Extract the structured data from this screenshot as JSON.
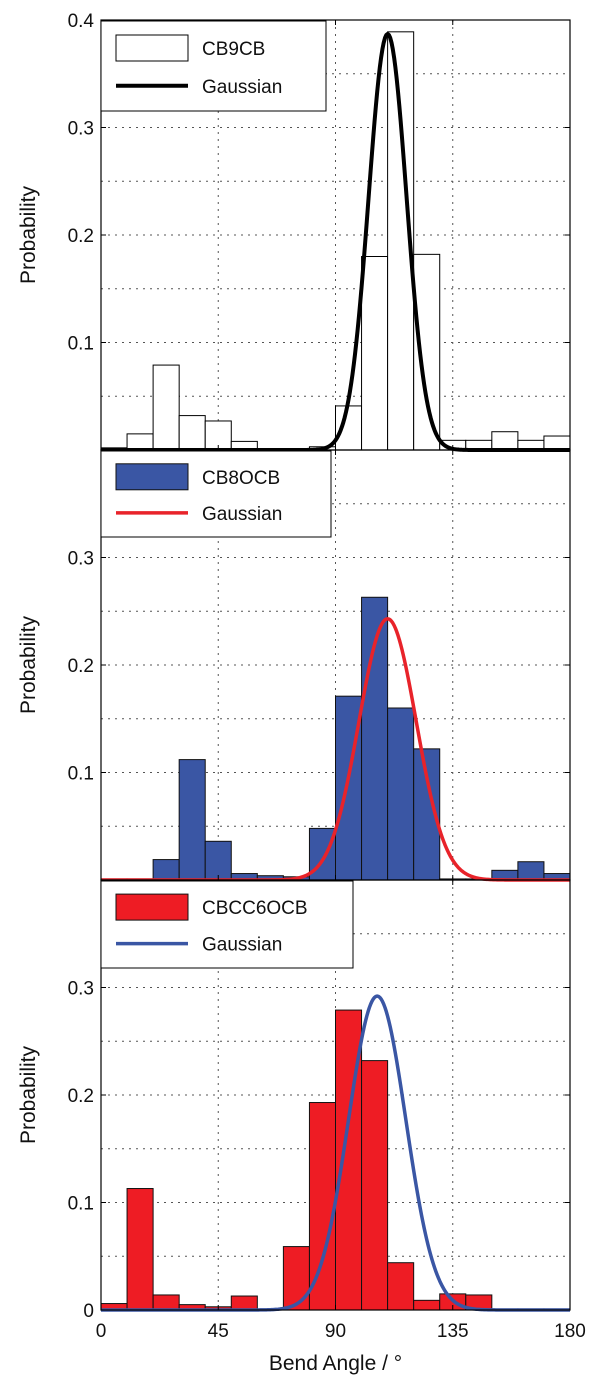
{
  "chart_data": [
    {
      "type": "bar",
      "panel": "top",
      "bin_width": 10,
      "x": [
        5,
        15,
        25,
        35,
        45,
        55,
        65,
        75,
        85,
        95,
        105,
        115,
        125,
        135,
        145,
        155,
        165,
        175
      ],
      "values": [
        0.002,
        0.015,
        0.079,
        0.032,
        0.027,
        0.008,
        0.001,
        0.001,
        0.003,
        0.041,
        0.18,
        0.389,
        0.182,
        0.009,
        0.009,
        0.017,
        0.009,
        0.013
      ],
      "series": [
        {
          "name": "CB9CB",
          "kind": "histogram",
          "fill": "#ffffff",
          "edge": "#000000"
        },
        {
          "name": "Gaussian",
          "kind": "line",
          "color": "#000000",
          "mean": 110,
          "sigma": 7.3,
          "peak": 0.387
        }
      ],
      "xlim": [
        0,
        180
      ],
      "ylim": [
        0,
        0.4
      ],
      "ylabel": "Probability",
      "yticks": [
        "0.1",
        "0.2",
        "0.3",
        "0.4"
      ],
      "ytick_values": [
        0.1,
        0.2,
        0.3,
        0.4
      ],
      "legend": "top-left",
      "grid": true
    },
    {
      "type": "bar",
      "panel": "middle",
      "bin_width": 10,
      "x": [
        5,
        15,
        25,
        35,
        45,
        55,
        65,
        75,
        85,
        95,
        105,
        115,
        125,
        135,
        145,
        155,
        165,
        175
      ],
      "values": [
        0.001,
        0.001,
        0.019,
        0.112,
        0.036,
        0.006,
        0.004,
        0.003,
        0.048,
        0.171,
        0.263,
        0.16,
        0.122,
        0.001,
        0.001,
        0.009,
        0.017,
        0.006
      ],
      "series": [
        {
          "name": "CB8OCB",
          "kind": "histogram",
          "fill": "#3a56a4",
          "edge": "#111111"
        },
        {
          "name": "Gaussian",
          "kind": "line",
          "color": "#e8232a",
          "mean": 110,
          "sigma": 11,
          "peak": 0.243
        }
      ],
      "xlim": [
        0,
        180
      ],
      "ylim": [
        0,
        0.4
      ],
      "ylabel": "Probability",
      "yticks": [
        "0.1",
        "0.2",
        "0.3"
      ],
      "ytick_values": [
        0.1,
        0.2,
        0.3
      ],
      "legend": "top-left",
      "grid": true
    },
    {
      "type": "bar",
      "panel": "bottom",
      "bin_width": 10,
      "x": [
        5,
        15,
        25,
        35,
        45,
        55,
        65,
        75,
        85,
        95,
        105,
        115,
        125,
        135,
        145,
        155,
        165,
        175
      ],
      "values": [
        0.006,
        0.113,
        0.014,
        0.005,
        0.003,
        0.013,
        0.001,
        0.059,
        0.193,
        0.279,
        0.232,
        0.044,
        0.009,
        0.015,
        0.014,
        0.001,
        0.001,
        0.001
      ],
      "series": [
        {
          "name": "CBCC6OCB",
          "kind": "histogram",
          "fill": "#ee1c24",
          "edge": "#111111"
        },
        {
          "name": "Gaussian",
          "kind": "line",
          "color": "#3a56a4",
          "mean": 106,
          "sigma": 11,
          "peak": 0.292
        }
      ],
      "xlim": [
        0,
        180
      ],
      "ylim": [
        0,
        0.4
      ],
      "ylabel": "Probability",
      "yticks": [
        "0",
        "0.1",
        "0.2",
        "0.3"
      ],
      "ytick_values": [
        0,
        0.1,
        0.2,
        0.3
      ],
      "xlabel": "Bend Angle / °",
      "xticks": [
        "0",
        "45",
        "90",
        "135",
        "180"
      ],
      "xtick_values": [
        0,
        45,
        90,
        135,
        180
      ],
      "legend": "top-left",
      "grid": true
    }
  ]
}
